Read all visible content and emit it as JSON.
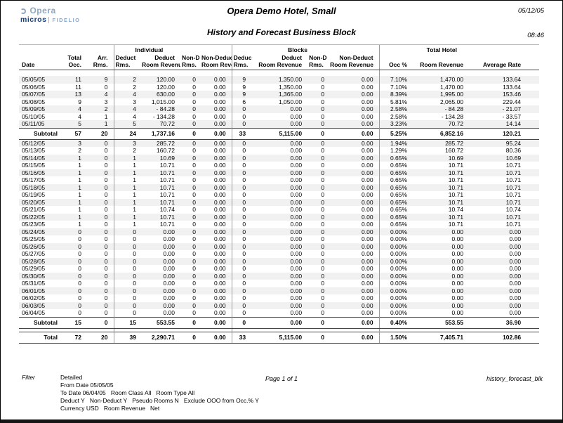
{
  "theme": {
    "navy": "#1c3e74",
    "ltblue": "#8ba7c7",
    "line": "#444444",
    "divider": "#9a9a9a",
    "stripe": "#f1f1f1"
  },
  "header": {
    "title": "Opera Demo Hotel, Small",
    "subtitle": "History and Forecast Business Block",
    "date": "05/12/05",
    "time": "08:46"
  },
  "logo": {
    "opera": "Opera",
    "micros": "micros",
    "fidelio": "FIDELIO"
  },
  "table": {
    "group_headers": [
      "Individual",
      "Blocks",
      "Total Hotel"
    ],
    "columns": [
      {
        "l1": "",
        "l2": "Date"
      },
      {
        "l1": "Total",
        "l2": "Occ."
      },
      {
        "l1": "Arr.",
        "l2": "Rms."
      },
      {
        "l1": "Deduct",
        "l2": "Rms."
      },
      {
        "l1": "Deduct",
        "l2": "Room Revenue"
      },
      {
        "l1": "Non-D",
        "l2": "Rms."
      },
      {
        "l1": "Non-Deduct",
        "l2": "Room Revenue"
      },
      {
        "l1": "Deduct",
        "l2": "Rms."
      },
      {
        "l1": "Deduct",
        "l2": "Room Revenue"
      },
      {
        "l1": "Non-D",
        "l2": "Rms."
      },
      {
        "l1": "Non-Deduct",
        "l2": "Room Revenue"
      },
      {
        "l1": "",
        "l2": "Occ %"
      },
      {
        "l1": "",
        "l2": "Room Revenue"
      },
      {
        "l1": "",
        "l2": "Average Rate"
      }
    ],
    "sections": [
      {
        "rows": [
          [
            "05/05/05",
            "11",
            "9",
            "2",
            "120.00",
            "0",
            "0.00",
            "9",
            "1,350.00",
            "0",
            "0.00",
            "7.10%",
            "1,470.00",
            "133.64"
          ],
          [
            "05/06/05",
            "11",
            "0",
            "2",
            "120.00",
            "0",
            "0.00",
            "9",
            "1,350.00",
            "0",
            "0.00",
            "7.10%",
            "1,470.00",
            "133.64"
          ],
          [
            "05/07/05",
            "13",
            "4",
            "4",
            "630.00",
            "0",
            "0.00",
            "9",
            "1,365.00",
            "0",
            "0.00",
            "8.39%",
            "1,995.00",
            "153.46"
          ],
          [
            "05/08/05",
            "9",
            "3",
            "3",
            "1,015.00",
            "0",
            "0.00",
            "6",
            "1,050.00",
            "0",
            "0.00",
            "5.81%",
            "2,065.00",
            "229.44"
          ],
          [
            "05/09/05",
            "4",
            "2",
            "4",
            "- 84.28",
            "0",
            "0.00",
            "0",
            "0.00",
            "0",
            "0.00",
            "2.58%",
            "- 84.28",
            "- 21.07"
          ],
          [
            "05/10/05",
            "4",
            "1",
            "4",
            "- 134.28",
            "0",
            "0.00",
            "0",
            "0.00",
            "0",
            "0.00",
            "2.58%",
            "- 134.28",
            "- 33.57"
          ],
          [
            "05/11/05",
            "5",
            "1",
            "5",
            "70.72",
            "0",
            "0.00",
            "0",
            "0.00",
            "0",
            "0.00",
            "3.23%",
            "70.72",
            "14.14"
          ]
        ],
        "subtotal": [
          "Subtotal",
          "57",
          "20",
          "24",
          "1,737.16",
          "0",
          "0.00",
          "33",
          "5,115.00",
          "0",
          "0.00",
          "5.25%",
          "6,852.16",
          "120.21"
        ]
      },
      {
        "rows": [
          [
            "05/12/05",
            "3",
            "0",
            "3",
            "285.72",
            "0",
            "0.00",
            "0",
            "0.00",
            "0",
            "0.00",
            "1.94%",
            "285.72",
            "95.24"
          ],
          [
            "05/13/05",
            "2",
            "0",
            "2",
            "160.72",
            "0",
            "0.00",
            "0",
            "0.00",
            "0",
            "0.00",
            "1.29%",
            "160.72",
            "80.36"
          ],
          [
            "05/14/05",
            "1",
            "0",
            "1",
            "10.69",
            "0",
            "0.00",
            "0",
            "0.00",
            "0",
            "0.00",
            "0.65%",
            "10.69",
            "10.69"
          ],
          [
            "05/15/05",
            "1",
            "0",
            "1",
            "10.71",
            "0",
            "0.00",
            "0",
            "0.00",
            "0",
            "0.00",
            "0.65%",
            "10.71",
            "10.71"
          ],
          [
            "05/16/05",
            "1",
            "0",
            "1",
            "10.71",
            "0",
            "0.00",
            "0",
            "0.00",
            "0",
            "0.00",
            "0.65%",
            "10.71",
            "10.71"
          ],
          [
            "05/17/05",
            "1",
            "0",
            "1",
            "10.71",
            "0",
            "0.00",
            "0",
            "0.00",
            "0",
            "0.00",
            "0.65%",
            "10.71",
            "10.71"
          ],
          [
            "05/18/05",
            "1",
            "0",
            "1",
            "10.71",
            "0",
            "0.00",
            "0",
            "0.00",
            "0",
            "0.00",
            "0.65%",
            "10.71",
            "10.71"
          ],
          [
            "05/19/05",
            "1",
            "0",
            "1",
            "10.71",
            "0",
            "0.00",
            "0",
            "0.00",
            "0",
            "0.00",
            "0.65%",
            "10.71",
            "10.71"
          ],
          [
            "05/20/05",
            "1",
            "0",
            "1",
            "10.71",
            "0",
            "0.00",
            "0",
            "0.00",
            "0",
            "0.00",
            "0.65%",
            "10.71",
            "10.71"
          ],
          [
            "05/21/05",
            "1",
            "0",
            "1",
            "10.74",
            "0",
            "0.00",
            "0",
            "0.00",
            "0",
            "0.00",
            "0.65%",
            "10.74",
            "10.74"
          ],
          [
            "05/22/05",
            "1",
            "0",
            "1",
            "10.71",
            "0",
            "0.00",
            "0",
            "0.00",
            "0",
            "0.00",
            "0.65%",
            "10.71",
            "10.71"
          ],
          [
            "05/23/05",
            "1",
            "0",
            "1",
            "10.71",
            "0",
            "0.00",
            "0",
            "0.00",
            "0",
            "0.00",
            "0.65%",
            "10.71",
            "10.71"
          ],
          [
            "05/24/05",
            "0",
            "0",
            "0",
            "0.00",
            "0",
            "0.00",
            "0",
            "0.00",
            "0",
            "0.00",
            "0.00%",
            "0.00",
            "0.00"
          ],
          [
            "05/25/05",
            "0",
            "0",
            "0",
            "0.00",
            "0",
            "0.00",
            "0",
            "0.00",
            "0",
            "0.00",
            "0.00%",
            "0.00",
            "0.00"
          ],
          [
            "05/26/05",
            "0",
            "0",
            "0",
            "0.00",
            "0",
            "0.00",
            "0",
            "0.00",
            "0",
            "0.00",
            "0.00%",
            "0.00",
            "0.00"
          ],
          [
            "05/27/05",
            "0",
            "0",
            "0",
            "0.00",
            "0",
            "0.00",
            "0",
            "0.00",
            "0",
            "0.00",
            "0.00%",
            "0.00",
            "0.00"
          ],
          [
            "05/28/05",
            "0",
            "0",
            "0",
            "0.00",
            "0",
            "0.00",
            "0",
            "0.00",
            "0",
            "0.00",
            "0.00%",
            "0.00",
            "0.00"
          ],
          [
            "05/29/05",
            "0",
            "0",
            "0",
            "0.00",
            "0",
            "0.00",
            "0",
            "0.00",
            "0",
            "0.00",
            "0.00%",
            "0.00",
            "0.00"
          ],
          [
            "05/30/05",
            "0",
            "0",
            "0",
            "0.00",
            "0",
            "0.00",
            "0",
            "0.00",
            "0",
            "0.00",
            "0.00%",
            "0.00",
            "0.00"
          ],
          [
            "05/31/05",
            "0",
            "0",
            "0",
            "0.00",
            "0",
            "0.00",
            "0",
            "0.00",
            "0",
            "0.00",
            "0.00%",
            "0.00",
            "0.00"
          ],
          [
            "06/01/05",
            "0",
            "0",
            "0",
            "0.00",
            "0",
            "0.00",
            "0",
            "0.00",
            "0",
            "0.00",
            "0.00%",
            "0.00",
            "0.00"
          ],
          [
            "06/02/05",
            "0",
            "0",
            "0",
            "0.00",
            "0",
            "0.00",
            "0",
            "0.00",
            "0",
            "0.00",
            "0.00%",
            "0.00",
            "0.00"
          ],
          [
            "06/03/05",
            "0",
            "0",
            "0",
            "0.00",
            "0",
            "0.00",
            "0",
            "0.00",
            "0",
            "0.00",
            "0.00%",
            "0.00",
            "0.00"
          ],
          [
            "06/04/05",
            "0",
            "0",
            "0",
            "0.00",
            "0",
            "0.00",
            "0",
            "0.00",
            "0",
            "0.00",
            "0.00%",
            "0.00",
            "0.00"
          ]
        ],
        "subtotal": [
          "Subtotal",
          "15",
          "0",
          "15",
          "553.55",
          "0",
          "0.00",
          "0",
          "0.00",
          "0",
          "0.00",
          "0.40%",
          "553.55",
          "36.90"
        ]
      }
    ],
    "total": [
      "Total",
      "72",
      "20",
      "39",
      "2,290.71",
      "0",
      "0.00",
      "33",
      "5,115.00",
      "0",
      "0.00",
      "1.50%",
      "7,405.71",
      "102.86"
    ]
  },
  "footer": {
    "filter_label": "Filter",
    "lines": [
      [
        "Detailed"
      ],
      [
        "From Date 05/05/05"
      ],
      [
        "To Date 06/04/05",
        "Room Class All",
        "Room Type All"
      ],
      [
        "Deduct Y",
        "Non-Deduct Y",
        "Pseudo Rooms N",
        "Exclude OOO from Occ.% Y"
      ],
      [
        "Currency USD",
        "Room Revenue",
        "Net"
      ]
    ],
    "page_info": "Page 1 of 1",
    "report_id": "history_forecast_blk"
  }
}
